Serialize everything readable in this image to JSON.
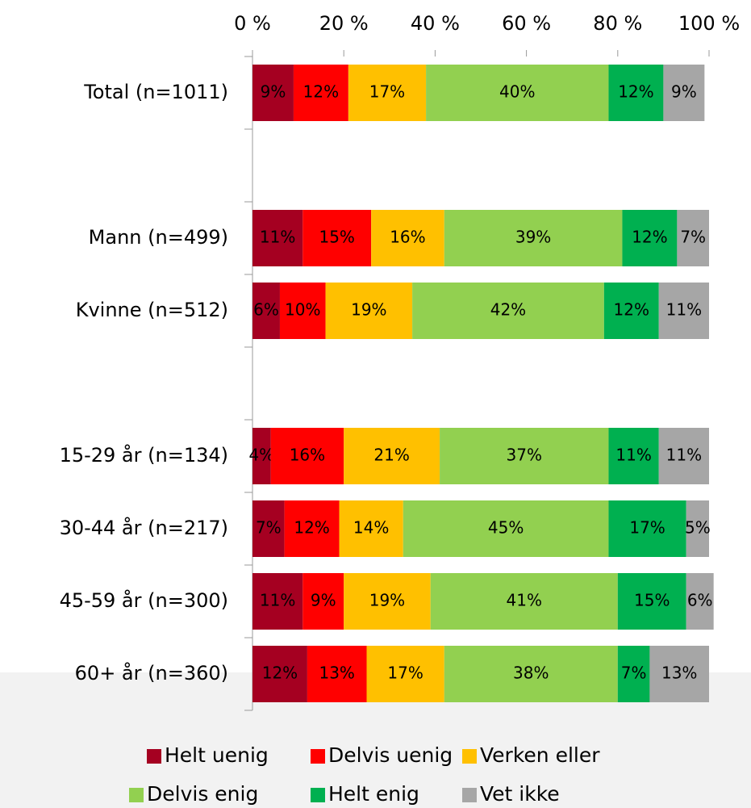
{
  "chart_data": {
    "type": "stacked_bar_horizontal",
    "categories": [
      "Total (n=1011)",
      null,
      "Mann (n=499)",
      "Kvinne (n=512)",
      null,
      "15-29 år (n=134)",
      "30-44 år (n=217)",
      "45-59 år (n=300)",
      "60+ år (n=360)"
    ],
    "series": [
      {
        "name": "Helt uenig",
        "color": "#a50021",
        "values": [
          9,
          null,
          11,
          6,
          null,
          4,
          7,
          11,
          12
        ],
        "value_labels": [
          "9%",
          null,
          "11%",
          "6%",
          null,
          "4%",
          "7%",
          "11%",
          "12%"
        ]
      },
      {
        "name": "Delvis uenig",
        "color": "#ff0000",
        "values": [
          12,
          null,
          15,
          10,
          null,
          16,
          12,
          9,
          13
        ],
        "value_labels": [
          "12%",
          null,
          "15%",
          "10%",
          null,
          "16%",
          "12%",
          "9%",
          "13%"
        ]
      },
      {
        "name": "Verken eller",
        "color": "#ffc000",
        "values": [
          17,
          null,
          16,
          19,
          null,
          21,
          14,
          19,
          17
        ],
        "value_labels": [
          "17%",
          null,
          "16%",
          "19%",
          null,
          "21%",
          "14%",
          "19%",
          "17%"
        ]
      },
      {
        "name": "Delvis enig",
        "color": "#92d050",
        "values": [
          40,
          null,
          39,
          42,
          null,
          37,
          45,
          41,
          38
        ],
        "value_labels": [
          "40%",
          null,
          "39%",
          "42%",
          null,
          "37%",
          "45%",
          "41%",
          "38%"
        ]
      },
      {
        "name": "Helt enig",
        "color": "#00b050",
        "values": [
          12,
          null,
          12,
          12,
          null,
          11,
          17,
          15,
          7
        ],
        "value_labels": [
          "12%",
          null,
          "12%",
          "12%",
          null,
          "11%",
          "17%",
          "15%",
          "7%"
        ]
      },
      {
        "name": "Vet ikke",
        "color": "#a6a6a6",
        "values": [
          9,
          null,
          7,
          11,
          null,
          11,
          5,
          6,
          13
        ],
        "value_labels": [
          "9%",
          null,
          "7%",
          "11%",
          null,
          "11%",
          "5%",
          "6%",
          "13%"
        ]
      }
    ],
    "xlim": [
      0,
      100
    ],
    "xticks": [
      {
        "value": 0,
        "label": "0 %"
      },
      {
        "value": 20,
        "label": "20 %"
      },
      {
        "value": 40,
        "label": "40 %"
      },
      {
        "value": 60,
        "label": "60 %"
      },
      {
        "value": 80,
        "label": "80 %"
      },
      {
        "value": 100,
        "label": "100 %"
      }
    ],
    "legend": "bottom"
  }
}
